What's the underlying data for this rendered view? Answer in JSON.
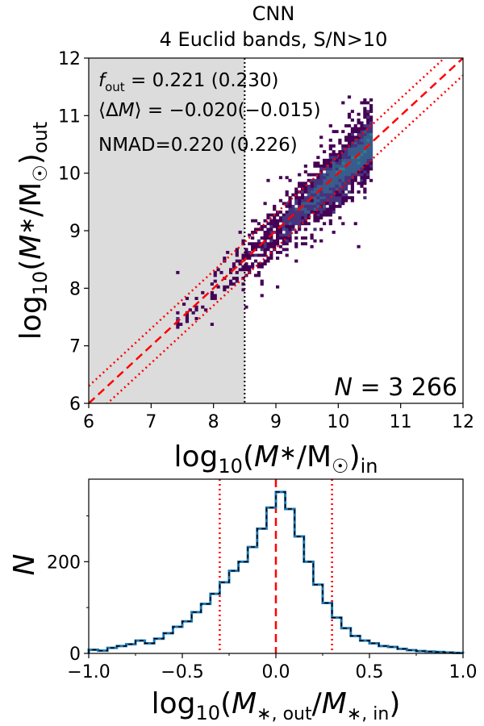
{
  "chart_data": [
    {
      "type": "heatmap",
      "title": "CNN\n4 Euclid bands, S/N>10",
      "title_lines": [
        "CNN",
        "4 Euclid bands, S/N>10"
      ],
      "xlabel": "log10(M*/M☉)in",
      "ylabel": "log10(M*/M☉)out",
      "xlim": [
        6,
        12
      ],
      "ylim": [
        6,
        12
      ],
      "xticks": [
        6,
        7,
        8,
        9,
        10,
        11,
        12
      ],
      "yticks": [
        6,
        7,
        8,
        9,
        10,
        11,
        12
      ],
      "shaded_region_x": [
        6,
        8.5
      ],
      "vertical_line_x": 8.5,
      "one_to_one_line": {
        "slope": 1,
        "intercept": 0,
        "style": "dashed",
        "color": "#ff0000"
      },
      "outlier_lines": {
        "offset": 0.3,
        "style": "dotted",
        "color": "#ff0000"
      },
      "colormap": "viridis",
      "annotations": {
        "f_out": "= 0.221 (0.230)",
        "mean_dM": "= −0.020(−0.015)",
        "nmad": "NMAD=0.220 (0.226)",
        "n_label": "= 3 266"
      }
    },
    {
      "type": "histogram",
      "xlabel": "log10(M*,out/M*,in)",
      "ylabel": "N",
      "xlim": [
        -1.0,
        1.0
      ],
      "ylim": [
        0,
        380
      ],
      "xticks": [
        -1.0,
        -0.5,
        0.0,
        0.5,
        1.0
      ],
      "yticks": [
        0,
        200
      ],
      "vertical_lines": [
        {
          "x": -0.3,
          "style": "dotted",
          "color": "#ff0000"
        },
        {
          "x": 0.0,
          "style": "dashed",
          "color": "#ff0000"
        },
        {
          "x": 0.3,
          "style": "dotted",
          "color": "#ff0000"
        }
      ],
      "bin_width": 0.05,
      "bin_edges": [
        -1.0,
        -0.95,
        -0.9,
        -0.85,
        -0.8,
        -0.75,
        -0.7,
        -0.65,
        -0.6,
        -0.55,
        -0.5,
        -0.45,
        -0.4,
        -0.35,
        -0.3,
        -0.25,
        -0.2,
        -0.15,
        -0.1,
        -0.05,
        0.0,
        0.05,
        0.1,
        0.15,
        0.2,
        0.25,
        0.3,
        0.35,
        0.4,
        0.45,
        0.5,
        0.55,
        0.6,
        0.65,
        0.7,
        0.75,
        0.8,
        0.85,
        0.9,
        0.95,
        1.0
      ],
      "counts": [
        8,
        6,
        12,
        16,
        20,
        28,
        22,
        32,
        44,
        58,
        70,
        90,
        108,
        130,
        155,
        180,
        200,
        232,
        272,
        318,
        352,
        315,
        255,
        200,
        150,
        110,
        78,
        55,
        38,
        28,
        22,
        16,
        14,
        10,
        7,
        5,
        4,
        3,
        2,
        1
      ],
      "series": [
        {
          "name": "histogram (solid)",
          "color": "#1f77b4"
        },
        {
          "name": "histogram (dashed)",
          "color": "#000000"
        }
      ]
    }
  ]
}
